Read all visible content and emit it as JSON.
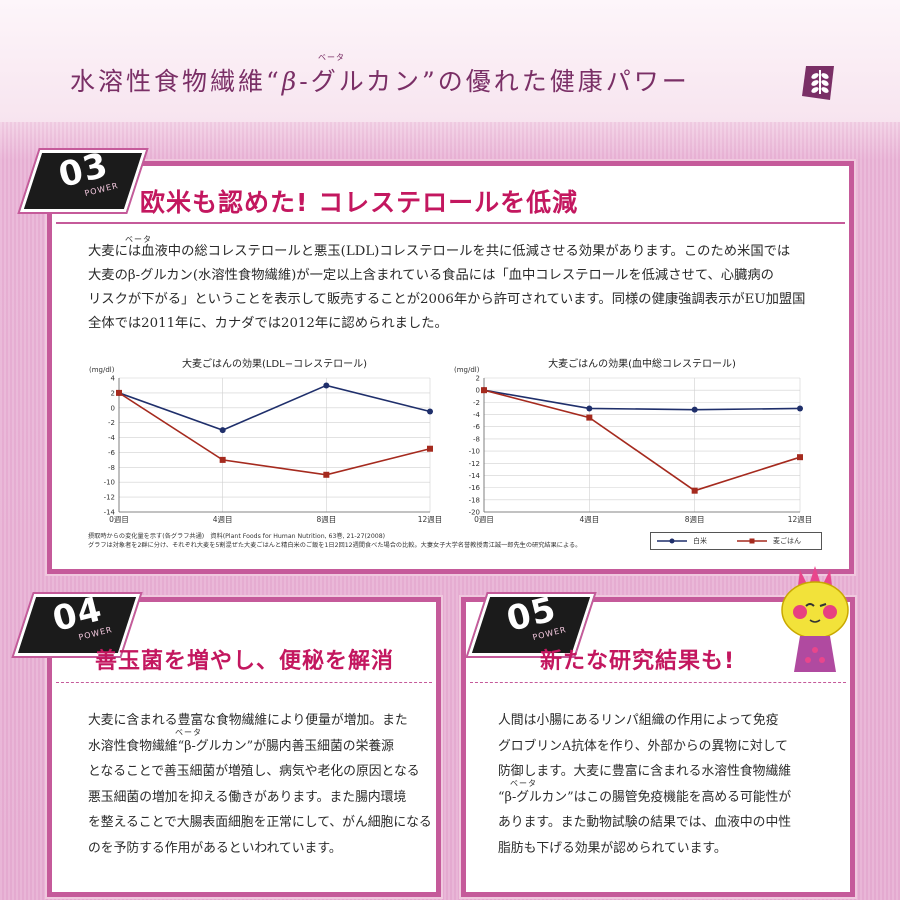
{
  "header": {
    "title_pre": "水溶性食物繊維“",
    "title_beta": "β",
    "title_mid": "-グルカン”の優れた健康パワー",
    "title_ruby": "ベータ"
  },
  "colors": {
    "accent": "#c3175f",
    "frame": "#c55a9a",
    "series_white_rice": "#1f2f6b",
    "series_barley_rice": "#a52a1e"
  },
  "sections": {
    "s03": {
      "badge_num": "03",
      "badge_sub": "POWER",
      "title": "欧米も認めた! コレステロールを低減",
      "lines": [
        "大麦には血液中の総コレステロールと悪玉(LDL)コレステロールを共に低減させる効果があります。このため米国では",
        "大麦のβ-グルカン(水溶性食物繊維)が一定以上含まれている食品には「血中コレステロールを低減させて、心臓病の",
        "リスクが下がる」ということを表示して販売することが2006年から許可されています。同様の健康強調表示がEU加盟国",
        "全体では2011年に、カナダでは2012年に認められました。"
      ],
      "ruby": "ベータ",
      "footnote_1": "摂取時からの変化量を示す(各グラフ共通)　資料(Plant Foods for Human Nutrition, 63巻, 21-27(2008)",
      "footnote_2": "グラフは対象者を2群に分け、それぞれ大麦を5割混ぜた大麦ごはんと精白米のご飯を1日2回12週間食べた場合の比較。大妻女子大学名誉教授青江誠一郎先生の研究結果による。",
      "legend": [
        "白米",
        "麦ごはん"
      ]
    },
    "s04": {
      "badge_num": "04",
      "badge_sub": "POWER",
      "title": "善玉菌を増やし、便秘を解消",
      "ruby": "ベータ",
      "lines": [
        "大麦に含まれる豊富な食物繊維により便量が増加。また",
        "水溶性食物繊維“β-グルカン”が腸内善玉細菌の栄養源",
        "となることで善玉細菌が増殖し、病気や老化の原因となる",
        "悪玉細菌の増加を抑える働きがあります。また腸内環境",
        "を整えることで大腸表面細胞を正常にして、がん細胞になる",
        "のを予防する作用があるといわれています。"
      ]
    },
    "s05": {
      "badge_num": "05",
      "badge_sub": "POWER",
      "title": "新たな研究結果も!",
      "ruby": "ベータ",
      "lines": [
        "人間は小腸にあるリンパ組織の作用によって免疫",
        "グロブリンA抗体を作り、外部からの異物に対して",
        "防御します。大麦に豊富に含まれる水溶性食物繊維",
        "“β-グルカン”はこの腸管免疫機能を高める可能性が",
        "あります。また動物試験の結果では、血液中の中性",
        "脂肪も下げる効果が認められています。"
      ]
    }
  },
  "chart_data": [
    {
      "type": "line",
      "title": "大麦ごはんの効果(LDL−コレステロール)",
      "ylabel": "(mg/dl)",
      "x": [
        "0週目",
        "4週目",
        "8週目",
        "12週目"
      ],
      "yticks": [
        4,
        2,
        0,
        -2,
        -4,
        -6,
        -8,
        -10,
        -12,
        -14
      ],
      "ylim": [
        -14,
        4
      ],
      "grid": true,
      "series": [
        {
          "name": "白米",
          "values": [
            2,
            -3,
            3,
            -0.5
          ]
        },
        {
          "name": "麦ごはん",
          "values": [
            2,
            -7,
            -9,
            -5.5
          ]
        }
      ]
    },
    {
      "type": "line",
      "title": "大麦ごはんの効果(血中総コレステロール)",
      "ylabel": "(mg/dl)",
      "x": [
        "0週目",
        "4週目",
        "8週目",
        "12週目"
      ],
      "yticks": [
        2,
        0,
        -2,
        -4,
        -6,
        -8,
        -10,
        -12,
        -14,
        -16,
        -18,
        -20
      ],
      "ylim": [
        -20,
        2
      ],
      "grid": true,
      "series": [
        {
          "name": "白米",
          "values": [
            0,
            -3,
            -3.2,
            -3
          ]
        },
        {
          "name": "麦ごはん",
          "values": [
            0,
            -4.5,
            -16.5,
            -11
          ]
        }
      ]
    }
  ]
}
